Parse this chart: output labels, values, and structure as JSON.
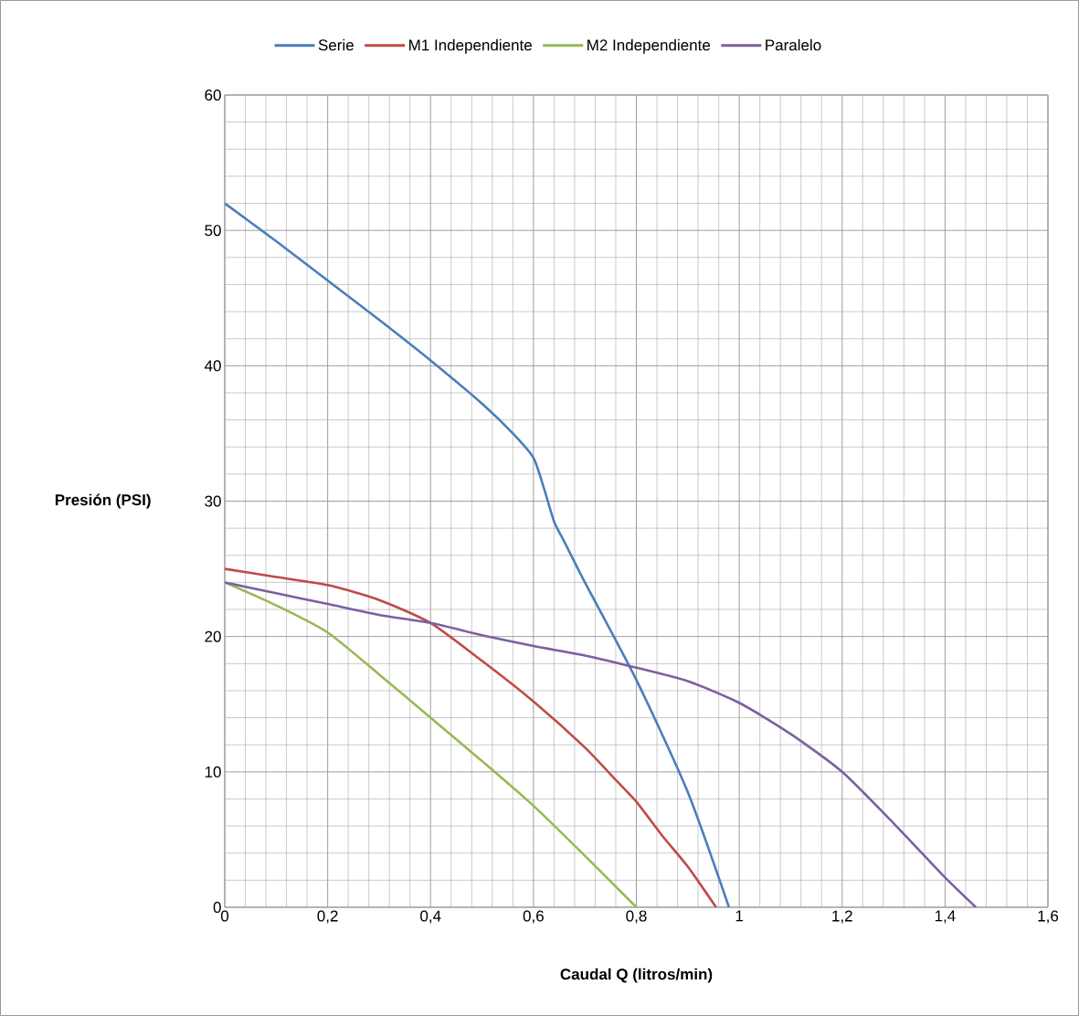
{
  "chart_data": {
    "type": "line",
    "xlabel": "Caudal Q (litros/min)",
    "ylabel": "Presión (PSI)",
    "xlim": [
      0,
      1.6
    ],
    "ylim": [
      0,
      60
    ],
    "xticks": [
      0,
      {
        "value": 0.2,
        "label": "0,2"
      },
      {
        "value": 0.4,
        "label": "0,4"
      },
      {
        "value": 0.6,
        "label": "0,6"
      },
      {
        "value": 0.8,
        "label": "0,8"
      },
      1,
      {
        "value": 1.2,
        "label": "1,2"
      },
      {
        "value": 1.4,
        "label": "1,4"
      },
      {
        "value": 1.6,
        "label": "1,6"
      }
    ],
    "yticks": [
      0,
      10,
      20,
      30,
      40,
      50,
      60
    ],
    "grid": true,
    "legend": "top",
    "marker": "none",
    "line_style": "solid",
    "series": [
      {
        "name": "Serie",
        "color": "#4a7ebb",
        "x": [
          0,
          0.1,
          0.2,
          0.3,
          0.4,
          0.5,
          0.56,
          0.6,
          0.62,
          0.64,
          0.66,
          0.7,
          0.8,
          0.9,
          0.98
        ],
        "values": [
          52,
          49.2,
          46.3,
          43.4,
          40.4,
          37.2,
          35,
          33.2,
          31,
          28.5,
          27,
          24,
          16.8,
          8.5,
          0
        ]
      },
      {
        "name": "M1 Independiente",
        "color": "#be4b48",
        "x": [
          0,
          0.1,
          0.2,
          0.3,
          0.4,
          0.5,
          0.6,
          0.7,
          0.76,
          0.8,
          0.85,
          0.9,
          0.955
        ],
        "values": [
          25,
          24.4,
          23.8,
          22.7,
          21,
          18.2,
          15.2,
          11.8,
          9.4,
          7.8,
          5.3,
          3,
          0
        ]
      },
      {
        "name": "M2 Independiente",
        "color": "#98b954",
        "x": [
          0,
          0.1,
          0.2,
          0.3,
          0.4,
          0.5,
          0.6,
          0.7,
          0.8
        ],
        "values": [
          24,
          22.3,
          20.3,
          17.2,
          14,
          10.8,
          7.5,
          3.8,
          0
        ]
      },
      {
        "name": "Paralelo",
        "color": "#7d5fa0",
        "x": [
          0,
          0.1,
          0.2,
          0.3,
          0.4,
          0.5,
          0.6,
          0.7,
          0.8,
          0.9,
          1,
          1.1,
          1.2,
          1.3,
          1.4,
          1.46
        ],
        "values": [
          24,
          23.2,
          22.4,
          21.6,
          21,
          20.1,
          19.3,
          18.6,
          17.7,
          16.7,
          15.1,
          12.8,
          10,
          6.2,
          2.2,
          0
        ]
      }
    ]
  }
}
